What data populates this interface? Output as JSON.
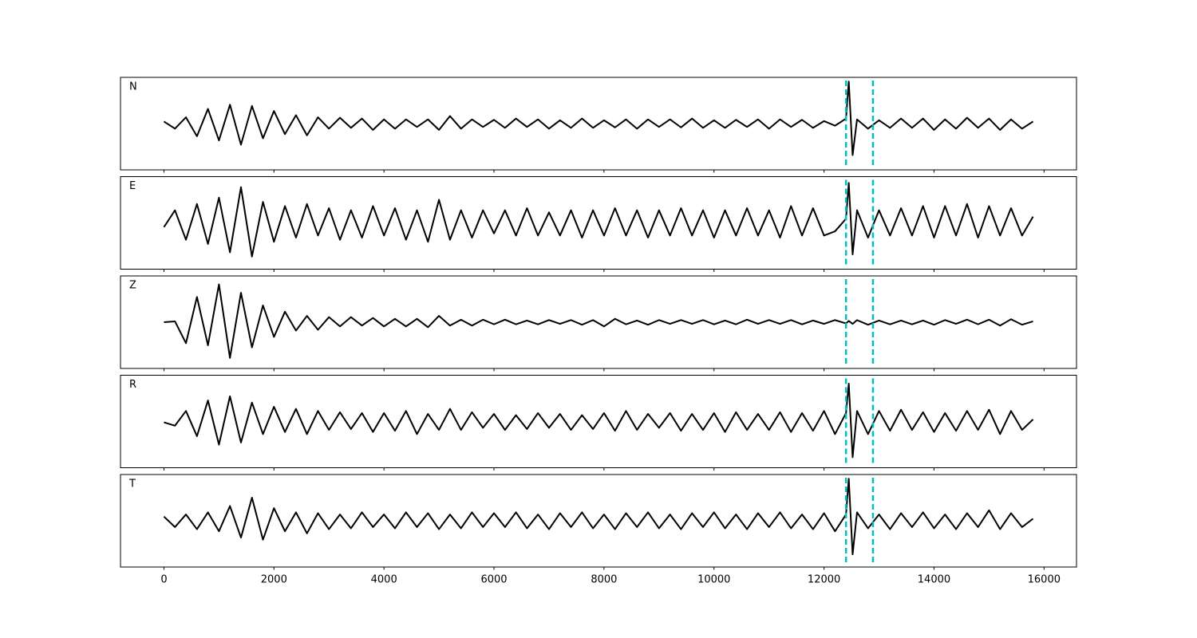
{
  "chart_data": {
    "type": "line",
    "subplots": true,
    "x": [
      0,
      200,
      400,
      600,
      800,
      1000,
      1200,
      1400,
      1600,
      1800,
      2000,
      2200,
      2400,
      2600,
      2800,
      3000,
      3200,
      3400,
      3600,
      3800,
      4000,
      4200,
      4400,
      4600,
      4800,
      5000,
      5200,
      5400,
      5600,
      5800,
      6000,
      6200,
      6400,
      6600,
      6800,
      7000,
      7200,
      7400,
      7600,
      7800,
      8000,
      8200,
      8400,
      8600,
      8800,
      9000,
      9200,
      9400,
      9600,
      9800,
      10000,
      10200,
      10400,
      10600,
      10800,
      11000,
      11200,
      11400,
      11600,
      11800,
      12000,
      12200,
      12400,
      12450,
      12520,
      12600,
      12800,
      13000,
      13200,
      13400,
      13600,
      13800,
      14000,
      14200,
      14400,
      14600,
      14800,
      15000,
      15200,
      15400,
      15600,
      15800
    ],
    "xlim": [
      -790,
      16590
    ],
    "xticks": [
      0,
      2000,
      4000,
      6000,
      8000,
      10000,
      12000,
      14000,
      16000
    ],
    "ylim": [
      -1.1,
      1.1
    ],
    "line_color": "#000000",
    "vlines": {
      "values": [
        12400,
        12890
      ],
      "color": "#00bfbf"
    },
    "series": [
      {
        "name": "N",
        "values": [
          0.05,
          -0.12,
          0.15,
          -0.3,
          0.35,
          -0.4,
          0.45,
          -0.5,
          0.42,
          -0.35,
          0.3,
          -0.25,
          0.2,
          -0.28,
          0.15,
          -0.12,
          0.14,
          -0.1,
          0.12,
          -0.15,
          0.1,
          -0.12,
          0.1,
          -0.08,
          0.1,
          -0.15,
          0.18,
          -0.12,
          0.1,
          -0.08,
          0.09,
          -0.1,
          0.12,
          -0.08,
          0.1,
          -0.12,
          0.08,
          -0.1,
          0.12,
          -0.1,
          0.08,
          -0.09,
          0.1,
          -0.12,
          0.1,
          -0.08,
          0.1,
          -0.09,
          0.12,
          -0.1,
          0.08,
          -0.1,
          0.09,
          -0.08,
          0.1,
          -0.12,
          0.1,
          -0.08,
          0.09,
          -0.1,
          0.06,
          -0.05,
          0.12,
          1.0,
          -0.75,
          0.1,
          -0.12,
          0.08,
          -0.1,
          0.12,
          -0.1,
          0.12,
          -0.15,
          0.1,
          -0.12,
          0.14,
          -0.1,
          0.12,
          -0.15,
          0.1,
          -0.12,
          0.05
        ]
      },
      {
        "name": "E",
        "values": [
          -0.1,
          0.3,
          -0.4,
          0.45,
          -0.5,
          0.6,
          -0.7,
          0.85,
          -0.8,
          0.5,
          -0.45,
          0.4,
          -0.35,
          0.45,
          -0.3,
          0.35,
          -0.4,
          0.3,
          -0.35,
          0.4,
          -0.3,
          0.35,
          -0.4,
          0.3,
          -0.45,
          0.55,
          -0.4,
          0.3,
          -0.35,
          0.3,
          -0.25,
          0.3,
          -0.3,
          0.35,
          -0.3,
          0.25,
          -0.3,
          0.3,
          -0.35,
          0.3,
          -0.3,
          0.35,
          -0.3,
          0.3,
          -0.35,
          0.3,
          -0.3,
          0.35,
          -0.3,
          0.3,
          -0.35,
          0.3,
          -0.3,
          0.35,
          -0.3,
          0.3,
          -0.35,
          0.4,
          -0.3,
          0.35,
          -0.3,
          -0.2,
          0.1,
          0.95,
          -0.75,
          0.3,
          -0.35,
          0.3,
          -0.3,
          0.35,
          -0.3,
          0.4,
          -0.35,
          0.4,
          -0.3,
          0.45,
          -0.35,
          0.4,
          -0.3,
          0.35,
          -0.3,
          0.15
        ]
      },
      {
        "name": "Z",
        "values": [
          0.0,
          0.02,
          -0.5,
          0.6,
          -0.55,
          0.9,
          -0.85,
          0.7,
          -0.6,
          0.4,
          -0.35,
          0.25,
          -0.2,
          0.15,
          -0.18,
          0.12,
          -0.1,
          0.12,
          -0.08,
          0.1,
          -0.1,
          0.08,
          -0.1,
          0.08,
          -0.12,
          0.15,
          -0.08,
          0.06,
          -0.08,
          0.06,
          -0.05,
          0.06,
          -0.05,
          0.04,
          -0.05,
          0.05,
          -0.04,
          0.05,
          -0.06,
          0.05,
          -0.1,
          0.08,
          -0.05,
          0.04,
          -0.06,
          0.05,
          -0.04,
          0.05,
          -0.04,
          0.05,
          -0.05,
          0.04,
          -0.05,
          0.06,
          -0.04,
          0.05,
          -0.04,
          0.05,
          -0.05,
          0.04,
          -0.04,
          0.05,
          -0.03,
          0.03,
          -0.04,
          0.05,
          -0.06,
          0.04,
          -0.05,
          0.04,
          -0.05,
          0.04,
          -0.06,
          0.05,
          -0.04,
          0.06,
          -0.05,
          0.06,
          -0.08,
          0.07,
          -0.06,
          0.02
        ]
      },
      {
        "name": "R",
        "values": [
          -0.02,
          -0.1,
          0.25,
          -0.35,
          0.5,
          -0.55,
          0.6,
          -0.5,
          0.45,
          -0.3,
          0.35,
          -0.25,
          0.3,
          -0.3,
          0.25,
          -0.2,
          0.22,
          -0.18,
          0.2,
          -0.25,
          0.2,
          -0.22,
          0.25,
          -0.3,
          0.18,
          -0.2,
          0.3,
          -0.2,
          0.22,
          -0.15,
          0.18,
          -0.2,
          0.15,
          -0.18,
          0.2,
          -0.15,
          0.18,
          -0.2,
          0.15,
          -0.18,
          0.2,
          -0.22,
          0.25,
          -0.2,
          0.18,
          -0.15,
          0.2,
          -0.22,
          0.18,
          -0.2,
          0.2,
          -0.25,
          0.22,
          -0.2,
          0.18,
          -0.2,
          0.22,
          -0.25,
          0.2,
          -0.22,
          0.25,
          -0.3,
          0.2,
          0.9,
          -0.85,
          0.25,
          -0.3,
          0.25,
          -0.22,
          0.28,
          -0.2,
          0.22,
          -0.25,
          0.2,
          -0.22,
          0.25,
          -0.2,
          0.28,
          -0.3,
          0.25,
          -0.2,
          0.05
        ]
      },
      {
        "name": "T",
        "values": [
          0.1,
          -0.15,
          0.15,
          -0.2,
          0.2,
          -0.25,
          0.35,
          -0.4,
          0.55,
          -0.45,
          0.3,
          -0.25,
          0.2,
          -0.3,
          0.18,
          -0.2,
          0.15,
          -0.18,
          0.2,
          -0.15,
          0.15,
          -0.18,
          0.2,
          -0.15,
          0.18,
          -0.2,
          0.15,
          -0.18,
          0.2,
          -0.15,
          0.18,
          -0.15,
          0.2,
          -0.18,
          0.15,
          -0.2,
          0.18,
          -0.15,
          0.2,
          -0.18,
          0.15,
          -0.2,
          0.18,
          -0.15,
          0.2,
          -0.18,
          0.15,
          -0.2,
          0.18,
          -0.15,
          0.2,
          -0.18,
          0.15,
          -0.2,
          0.18,
          -0.15,
          0.2,
          -0.18,
          0.15,
          -0.2,
          0.18,
          -0.25,
          0.15,
          1.0,
          -0.8,
          0.2,
          -0.18,
          0.15,
          -0.2,
          0.18,
          -0.15,
          0.2,
          -0.18,
          0.15,
          -0.2,
          0.18,
          -0.15,
          0.25,
          -0.2,
          0.18,
          -0.15,
          0.05
        ]
      }
    ]
  }
}
